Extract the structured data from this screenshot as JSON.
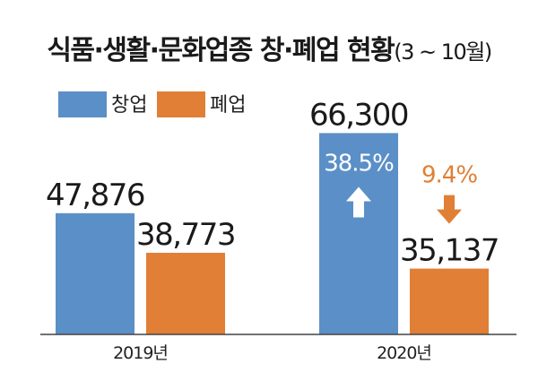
{
  "chart_data": {
    "type": "bar",
    "title": "식품·생활·문화업종 창·폐업 현황",
    "title_suffix": "(3 ~ 10월)",
    "categories": [
      "2019년",
      "2020년"
    ],
    "series": [
      {
        "name": "창업",
        "color": "#5b8fc7",
        "values": [
          47876,
          66300
        ],
        "labels": [
          "47,876",
          "66,300"
        ]
      },
      {
        "name": "폐업",
        "color": "#e07f35",
        "values": [
          38773,
          35137
        ],
        "labels": [
          "38,773",
          "35,137"
        ]
      }
    ],
    "annotations": [
      {
        "series": "창업",
        "category": "2020년",
        "text": "38.5%",
        "direction": "up",
        "color": "#ffffff"
      },
      {
        "series": "폐업",
        "category": "2020년",
        "text": "9.4%",
        "direction": "down",
        "color": "#e07f35"
      }
    ],
    "ylim": [
      20000,
      70000
    ],
    "grid": false,
    "legend_position": "top-left"
  }
}
